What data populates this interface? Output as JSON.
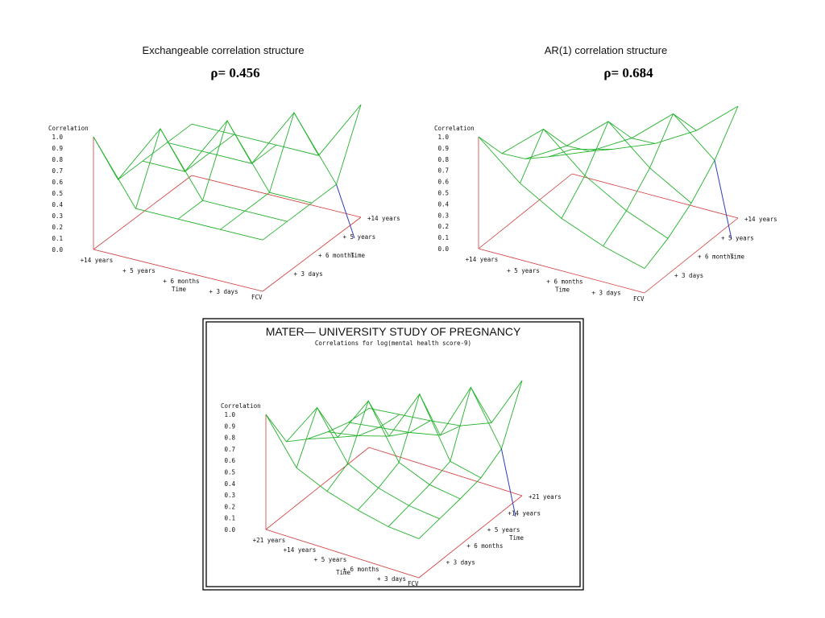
{
  "colors": {
    "mesh": "#22b22b",
    "axis": "#d23a3a",
    "diag": "#2a3fb8"
  },
  "chart_data": [
    {
      "type": "surface",
      "title": "Exchangeable correlation structure",
      "annotation": "ρ= 0.456",
      "zlabel": "Correlation",
      "xlabel": "Time",
      "ylabel": "Time",
      "corner_label": "FCV",
      "zlim": [
        0,
        1
      ],
      "z_ticks": [
        "1.0",
        "0.9",
        "0.8",
        "0.7",
        "0.6",
        "0.5",
        "0.4",
        "0.3",
        "0.2",
        "0.1",
        "0.0"
      ],
      "left_axis_ticks": [
        "+14 years",
        "+ 5 years",
        "+ 6 months",
        "+ 3 days"
      ],
      "right_axis_ticks": [
        "+14 years",
        "+ 5 years",
        "+ 6 months",
        "+ 3 days"
      ],
      "left_axis_name": "Time",
      "right_axis_name": "Time",
      "grid_labels": [
        "+14 years",
        "+ 5 years",
        "+ 6 months",
        "+ 3 days",
        "FCV"
      ],
      "correlation_matrix": [
        [
          1.0,
          0.456,
          0.456,
          0.456,
          0.456
        ],
        [
          0.456,
          1.0,
          0.456,
          0.456,
          0.456
        ],
        [
          0.456,
          0.456,
          1.0,
          0.456,
          0.456
        ],
        [
          0.456,
          0.456,
          0.456,
          1.0,
          0.456
        ],
        [
          0.456,
          0.456,
          0.456,
          0.456,
          1.0
        ]
      ]
    },
    {
      "type": "surface",
      "title": "AR(1) correlation structure",
      "annotation": "ρ= 0.684",
      "zlabel": "Correlation",
      "xlabel": "Time",
      "ylabel": "Time",
      "corner_label": "FCV",
      "zlim": [
        0,
        1
      ],
      "z_ticks": [
        "1.0",
        "0.9",
        "0.8",
        "0.7",
        "0.6",
        "0.5",
        "0.4",
        "0.3",
        "0.2",
        "0.1",
        "0.0"
      ],
      "left_axis_ticks": [
        "+14 years",
        "+ 5 years",
        "+ 6 months",
        "+ 3 days"
      ],
      "right_axis_ticks": [
        "+14 years",
        "+ 5 years",
        "+ 6 months",
        "+ 3 days"
      ],
      "left_axis_name": "Time",
      "right_axis_name": "Time",
      "grid_labels": [
        "+14 years",
        "+ 5 years",
        "+ 6 months",
        "+ 3 days",
        "FCV"
      ],
      "correlation_matrix": [
        [
          1.0,
          0.684,
          0.468,
          0.32,
          0.219
        ],
        [
          0.684,
          1.0,
          0.684,
          0.468,
          0.32
        ],
        [
          0.468,
          0.684,
          1.0,
          0.684,
          0.468
        ],
        [
          0.32,
          0.468,
          0.684,
          1.0,
          0.684
        ],
        [
          0.219,
          0.32,
          0.468,
          0.684,
          1.0
        ]
      ]
    },
    {
      "type": "surface",
      "title": "MATER— UNIVERSITY STUDY OF PREGNANCY",
      "subtitle": "Correlations for log(mental health score-9)",
      "zlabel": "Correlation",
      "xlabel": "Time",
      "ylabel": "Time",
      "corner_label": "FCV",
      "zlim": [
        0,
        1
      ],
      "z_ticks": [
        "1.0",
        "0.9",
        "0.8",
        "0.7",
        "0.6",
        "0.5",
        "0.4",
        "0.3",
        "0.2",
        "0.1",
        "0.0"
      ],
      "left_axis_ticks": [
        "+21 years",
        "+14 years",
        "+ 5 years",
        "+ 6 months",
        "+ 3 days"
      ],
      "right_axis_ticks": [
        "+21 years",
        "+14 years",
        "+ 5 years",
        "+ 6 months",
        "+ 3 days"
      ],
      "left_axis_name": "Time",
      "right_axis_name": "Time",
      "grid_labels": [
        "+21 years",
        "+14 years",
        "+ 5 years",
        "+ 6 months",
        "+ 3 days",
        "FCV"
      ],
      "correlation_matrix": [
        [
          1.0,
          0.62,
          0.5,
          0.42,
          0.36,
          0.34
        ],
        [
          0.62,
          1.0,
          0.6,
          0.47,
          0.4,
          0.37
        ],
        [
          0.5,
          0.6,
          1.0,
          0.55,
          0.44,
          0.4
        ],
        [
          0.42,
          0.47,
          0.55,
          1.0,
          0.5,
          0.44
        ],
        [
          0.36,
          0.4,
          0.44,
          0.5,
          1.0,
          0.55
        ],
        [
          0.34,
          0.37,
          0.4,
          0.44,
          0.55,
          1.0
        ]
      ]
    }
  ]
}
